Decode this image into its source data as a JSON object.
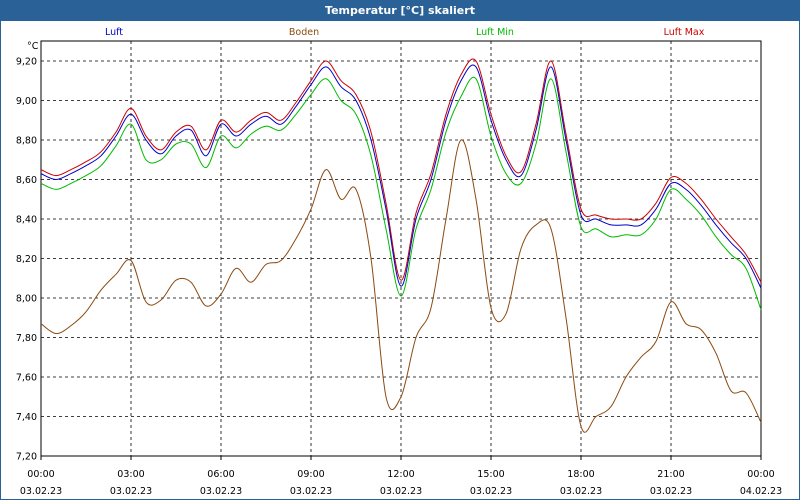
{
  "window": {
    "title": "Temperatur [°C] skaliert",
    "title_bg": "#2a6196"
  },
  "chart_data": {
    "type": "line",
    "title": "Temperatur [°C] skaliert",
    "ylabel": "°C",
    "xlabel": "",
    "ylim": [
      7.2,
      9.3
    ],
    "xlim": [
      0,
      24
    ],
    "grid": true,
    "legend_position": "top",
    "yticks": [
      "9,20",
      "9,00",
      "8,80",
      "8,60",
      "8,40",
      "8,20",
      "8,00",
      "7,80",
      "7,60",
      "7,40",
      "7,20"
    ],
    "ytick_values": [
      9.2,
      9.0,
      8.8,
      8.6,
      8.4,
      8.2,
      8.0,
      7.8,
      7.6,
      7.4,
      7.2
    ],
    "xticks": [
      {
        "time": "00:00",
        "date": "03.02.23",
        "hour": 0
      },
      {
        "time": "03:00",
        "date": "03.02.23",
        "hour": 3
      },
      {
        "time": "06:00",
        "date": "03.02.23",
        "hour": 6
      },
      {
        "time": "09:00",
        "date": "03.02.23",
        "hour": 9
      },
      {
        "time": "12:00",
        "date": "03.02.23",
        "hour": 12
      },
      {
        "time": "15:00",
        "date": "03.02.23",
        "hour": 15
      },
      {
        "time": "18:00",
        "date": "03.02.23",
        "hour": 18
      },
      {
        "time": "21:00",
        "date": "03.02.23",
        "hour": 21
      },
      {
        "time": "00:00",
        "date": "04.02.23",
        "hour": 24
      }
    ],
    "series": [
      {
        "name": "Luft",
        "color": "#0000cc",
        "x": [
          0,
          0.5,
          1,
          1.5,
          2,
          2.5,
          3,
          3.5,
          4,
          4.5,
          5,
          5.5,
          6,
          6.5,
          7,
          7.5,
          8,
          8.5,
          9,
          9.5,
          10,
          10.5,
          11,
          11.5,
          12,
          12.5,
          13,
          13.5,
          14,
          14.5,
          15,
          15.5,
          16,
          16.5,
          17,
          17.5,
          18,
          18.5,
          19,
          19.5,
          20,
          20.5,
          21,
          21.5,
          22,
          22.5,
          23,
          23.5,
          24
        ],
        "values": [
          8.63,
          8.6,
          8.63,
          8.67,
          8.72,
          8.82,
          8.93,
          8.8,
          8.73,
          8.82,
          8.85,
          8.72,
          8.88,
          8.82,
          8.88,
          8.92,
          8.88,
          8.97,
          9.08,
          9.17,
          9.07,
          9.0,
          8.8,
          8.45,
          8.06,
          8.4,
          8.6,
          8.9,
          9.1,
          9.17,
          8.9,
          8.7,
          8.62,
          8.85,
          9.17,
          8.8,
          8.42,
          8.4,
          8.37,
          8.37,
          8.37,
          8.45,
          8.58,
          8.55,
          8.47,
          8.37,
          8.28,
          8.2,
          8.05
        ]
      },
      {
        "name": "Boden",
        "color": "#8b4a10",
        "x": [
          0,
          0.5,
          1,
          1.5,
          2,
          2.5,
          3,
          3.5,
          4,
          4.5,
          5,
          5.5,
          6,
          6.5,
          7,
          7.5,
          8,
          8.5,
          9,
          9.5,
          10,
          10.5,
          11,
          11.5,
          12,
          12.5,
          13,
          13.5,
          14,
          14.5,
          15,
          15.5,
          16,
          16.5,
          17,
          17.5,
          18,
          18.5,
          19,
          19.5,
          20,
          20.5,
          21,
          21.5,
          22,
          22.5,
          23,
          23.5,
          24
        ],
        "values": [
          7.87,
          7.82,
          7.86,
          7.93,
          8.04,
          8.12,
          8.19,
          7.98,
          7.99,
          8.09,
          8.08,
          7.96,
          8.02,
          8.15,
          8.08,
          8.17,
          8.19,
          8.3,
          8.45,
          8.65,
          8.5,
          8.55,
          8.2,
          7.5,
          7.5,
          7.8,
          7.95,
          8.4,
          8.8,
          8.5,
          7.95,
          7.92,
          8.25,
          8.37,
          8.35,
          7.9,
          7.35,
          7.4,
          7.45,
          7.6,
          7.7,
          7.78,
          7.98,
          7.87,
          7.84,
          7.72,
          7.53,
          7.52,
          7.37
        ]
      },
      {
        "name": "Luft Min",
        "color": "#00bb00",
        "x": [
          0,
          0.5,
          1,
          1.5,
          2,
          2.5,
          3,
          3.5,
          4,
          4.5,
          5,
          5.5,
          6,
          6.5,
          7,
          7.5,
          8,
          8.5,
          9,
          9.5,
          10,
          10.5,
          11,
          11.5,
          12,
          12.5,
          13,
          13.5,
          14,
          14.5,
          15,
          15.5,
          16,
          16.5,
          17,
          17.5,
          18,
          18.5,
          19,
          19.5,
          20,
          20.5,
          21,
          21.5,
          22,
          22.5,
          23,
          23.5,
          24
        ],
        "values": [
          8.58,
          8.55,
          8.58,
          8.62,
          8.67,
          8.77,
          8.88,
          8.7,
          8.7,
          8.78,
          8.78,
          8.66,
          8.82,
          8.76,
          8.83,
          8.87,
          8.85,
          8.93,
          9.03,
          9.11,
          9.0,
          8.93,
          8.72,
          8.35,
          8.01,
          8.35,
          8.55,
          8.84,
          9.02,
          9.11,
          8.82,
          8.63,
          8.58,
          8.78,
          9.11,
          8.74,
          8.36,
          8.35,
          8.31,
          8.32,
          8.32,
          8.4,
          8.55,
          8.5,
          8.42,
          8.31,
          8.22,
          8.15,
          7.94
        ]
      },
      {
        "name": "Luft Max",
        "color": "#cc0000",
        "x": [
          0,
          0.5,
          1,
          1.5,
          2,
          2.5,
          3,
          3.5,
          4,
          4.5,
          5,
          5.5,
          6,
          6.5,
          7,
          7.5,
          8,
          8.5,
          9,
          9.5,
          10,
          10.5,
          11,
          11.5,
          12,
          12.5,
          13,
          13.5,
          14,
          14.5,
          15,
          15.5,
          16,
          16.5,
          17,
          17.5,
          18,
          18.5,
          19,
          19.5,
          20,
          20.5,
          21,
          21.5,
          22,
          22.5,
          23,
          23.5,
          24
        ],
        "values": [
          8.65,
          8.62,
          8.65,
          8.69,
          8.74,
          8.84,
          8.96,
          8.82,
          8.75,
          8.84,
          8.87,
          8.75,
          8.9,
          8.84,
          8.9,
          8.94,
          8.9,
          8.99,
          9.1,
          9.2,
          9.1,
          9.03,
          8.84,
          8.48,
          8.09,
          8.43,
          8.63,
          8.93,
          9.13,
          9.2,
          8.93,
          8.72,
          8.64,
          8.88,
          9.2,
          8.83,
          8.45,
          8.42,
          8.4,
          8.4,
          8.4,
          8.48,
          8.61,
          8.58,
          8.5,
          8.4,
          8.31,
          8.22,
          8.08
        ]
      }
    ]
  }
}
